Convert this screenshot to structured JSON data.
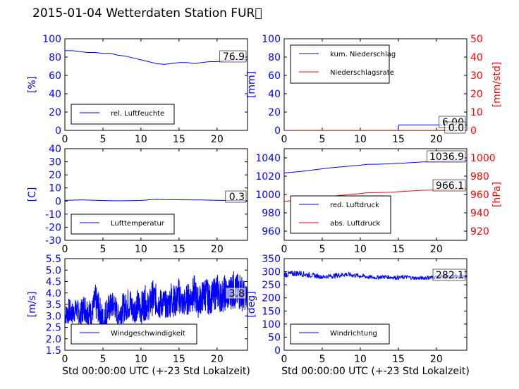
{
  "figure": {
    "title": "2015-01-04 Wetterdaten Station FUR\u0000",
    "xlabel": "Std 00:00:00 UTC (+-23 Std Lokalzeit)"
  },
  "colors": {
    "left_axis": "#0000ff",
    "right_axis": "#ff0000",
    "series_blue": "#0000ff",
    "series_red": "#ff0000"
  },
  "chart_data": [
    {
      "id": "humidity",
      "type": "line",
      "ylabel": "[%]",
      "xlim": [
        0,
        24
      ],
      "ylim": [
        0,
        100
      ],
      "xticks": [
        0,
        5,
        10,
        15,
        20
      ],
      "yticks": [
        0,
        20,
        40,
        60,
        80,
        100
      ],
      "legend_placement": "bottom-left",
      "series": [
        {
          "name": "rel. Luftfeuchte",
          "axis": "left",
          "color": "#0000ff",
          "x": [
            0,
            1,
            2,
            3,
            4,
            5,
            6,
            7,
            8,
            9,
            10,
            11,
            12,
            13,
            14,
            15,
            16,
            17,
            18,
            19,
            20,
            21,
            22,
            23,
            24
          ],
          "y": [
            87,
            87,
            86,
            85,
            85,
            84,
            84,
            82,
            81,
            79,
            77,
            75,
            73,
            72,
            73,
            74,
            74,
            73,
            74,
            75,
            75,
            76,
            77,
            77,
            77
          ]
        }
      ],
      "annotations": [
        {
          "text": "76.9"
        }
      ]
    },
    {
      "id": "precipitation",
      "type": "line",
      "ylabel": "[mm]",
      "ylabel_right": "[mm/std]",
      "xlim": [
        0,
        24
      ],
      "ylim": [
        0,
        100
      ],
      "ylim_right": [
        0,
        50
      ],
      "xticks": [
        0,
        5,
        10,
        15,
        20
      ],
      "yticks": [
        0,
        20,
        40,
        60,
        80,
        100
      ],
      "yticks_right": [
        0,
        10,
        20,
        30,
        40,
        50
      ],
      "legend_placement": "top-left",
      "series": [
        {
          "name": "kum. Niederschlag",
          "axis": "left",
          "color": "#0000ff",
          "x": [
            0,
            15,
            15.05,
            24
          ],
          "y": [
            0,
            0,
            6,
            6
          ]
        },
        {
          "name": "Niederschlagsrate",
          "axis": "right",
          "color": "#ff0000",
          "x": [
            0,
            24
          ],
          "y": [
            0,
            0
          ]
        }
      ],
      "annotations": [
        {
          "text": "6.00"
        },
        {
          "text": "0.0"
        }
      ]
    },
    {
      "id": "temperature",
      "type": "line",
      "ylabel": "[C]",
      "xlim": [
        0,
        24
      ],
      "ylim": [
        -30,
        40
      ],
      "xticks": [
        0,
        5,
        10,
        15,
        20
      ],
      "yticks": [
        -30,
        -20,
        -10,
        0,
        10,
        20,
        30,
        40
      ],
      "legend_placement": "bottom-left",
      "series": [
        {
          "name": "Lufttemperatur",
          "axis": "left",
          "color": "#0000ff",
          "x": [
            0,
            2,
            4,
            6,
            8,
            10,
            11,
            12,
            13,
            14,
            16,
            18,
            20,
            22,
            24
          ],
          "y": [
            0.5,
            0.9,
            0.6,
            0.2,
            0.2,
            0.4,
            0.9,
            1.4,
            1.1,
            1.0,
            0.9,
            0.8,
            0.6,
            0.4,
            0.3
          ]
        }
      ],
      "annotations": [
        {
          "text": "0.3"
        }
      ]
    },
    {
      "id": "pressure",
      "type": "line",
      "ylabel": "",
      "ylabel_right": "[hPa]",
      "xlim": [
        0,
        24
      ],
      "ylim": [
        950,
        1050
      ],
      "ylim_right": [
        910,
        1010
      ],
      "xticks": [
        0,
        5,
        10,
        15,
        20
      ],
      "yticks": [
        960,
        980,
        1000,
        1020,
        1040
      ],
      "yticks_right": [
        920,
        940,
        960,
        980,
        1000
      ],
      "legend_placement": "bottom-left",
      "series": [
        {
          "name": "red. Luftdruck",
          "axis": "left",
          "color": "#0000ff",
          "x": [
            0,
            2,
            4,
            6,
            8,
            10,
            11,
            12,
            14,
            16,
            18,
            20,
            22,
            24
          ],
          "y": [
            1023.5,
            1025,
            1027,
            1029,
            1030.5,
            1032,
            1033,
            1033,
            1033.5,
            1034.5,
            1035.5,
            1036,
            1036.5,
            1036.9
          ]
        },
        {
          "name": "abs. Luftdruck",
          "axis": "right",
          "color": "#ff0000",
          "x": [
            0,
            2,
            4,
            6,
            8,
            10,
            11,
            12,
            14,
            16,
            18,
            20,
            22,
            24
          ],
          "y": [
            952.5,
            954,
            956,
            958,
            959.5,
            961,
            962,
            962,
            962.5,
            963.5,
            964.5,
            965,
            965.5,
            966.1
          ]
        }
      ],
      "annotations": [
        {
          "text": "1036.9"
        },
        {
          "text": "966.1"
        }
      ]
    },
    {
      "id": "windspeed",
      "type": "line",
      "ylabel": "[m/s]",
      "xlim": [
        0,
        24
      ],
      "ylim": [
        1.5,
        5.5
      ],
      "xticks": [
        0,
        5,
        10,
        15,
        20
      ],
      "yticks": [
        1.5,
        2.0,
        2.5,
        3.0,
        3.5,
        4.0,
        4.5,
        5.0,
        5.5
      ],
      "legend_placement": "bottom-left",
      "series": [
        {
          "name": "Windgeschwindigkeit",
          "axis": "left",
          "color": "#0000ff",
          "x": [
            0,
            0.5,
            1,
            1.5,
            2,
            2.5,
            3,
            3.5,
            4,
            4.5,
            5,
            5.5,
            6,
            6.5,
            7,
            7.5,
            8,
            8.5,
            9,
            9.5,
            10,
            10.5,
            11,
            11.5,
            12,
            12.5,
            13,
            13.5,
            14,
            14.5,
            15,
            15.5,
            16,
            16.5,
            17,
            17.5,
            18,
            18.5,
            19,
            19.5,
            20,
            20.5,
            21,
            21.5,
            22,
            22.5,
            23,
            23.5,
            24
          ],
          "y": [
            3.0,
            3.2,
            3.1,
            3.3,
            3.0,
            3.4,
            3.2,
            3.1,
            3.6,
            3.3,
            2.6,
            3.2,
            3.4,
            3.5,
            3.0,
            3.3,
            3.4,
            3.6,
            3.2,
            3.5,
            3.3,
            3.6,
            3.4,
            3.8,
            3.7,
            3.5,
            3.6,
            3.4,
            3.8,
            3.6,
            3.9,
            3.5,
            3.7,
            3.8,
            4.0,
            3.6,
            3.8,
            4.0,
            3.7,
            3.9,
            4.1,
            3.8,
            4.0,
            3.9,
            4.2,
            4.0,
            4.1,
            3.9,
            3.8
          ],
          "spread": [
            0.4,
            0.6,
            0.5,
            0.5,
            0.6,
            0.6,
            0.7,
            0.5,
            0.8,
            0.7,
            0.9,
            0.7,
            0.6,
            0.6,
            0.5,
            0.7,
            0.6,
            0.8,
            0.6,
            0.7,
            0.7,
            0.8,
            0.6,
            0.8,
            0.7,
            0.7,
            0.6,
            0.6,
            0.8,
            0.7,
            0.8,
            0.6,
            0.7,
            0.7,
            0.8,
            0.7,
            0.7,
            0.8,
            0.7,
            0.7,
            0.8,
            0.7,
            0.8,
            0.7,
            0.9,
            0.8,
            0.9,
            0.7,
            0.5
          ]
        }
      ],
      "annotations": [
        {
          "text": "3.8"
        }
      ]
    },
    {
      "id": "winddir",
      "type": "line",
      "ylabel": "[deg]",
      "xlim": [
        0,
        24
      ],
      "ylim": [
        0,
        350
      ],
      "xticks": [
        0,
        5,
        10,
        15,
        20
      ],
      "yticks": [
        0,
        50,
        100,
        150,
        200,
        250,
        300,
        350
      ],
      "legend_placement": "bottom-left",
      "series": [
        {
          "name": "Windrichtung",
          "axis": "left",
          "color": "#0000ff",
          "x": [
            0,
            1,
            2,
            3,
            4,
            5,
            6,
            7,
            8,
            9,
            10,
            11,
            12,
            13,
            14,
            15,
            16,
            17,
            18,
            19,
            20,
            21,
            22,
            23,
            24
          ],
          "y": [
            290,
            292,
            295,
            288,
            285,
            280,
            283,
            286,
            290,
            287,
            284,
            280,
            278,
            281,
            279,
            277,
            280,
            276,
            275,
            278,
            279,
            280,
            281,
            282,
            282
          ],
          "spread": [
            12,
            12,
            12,
            10,
            9,
            8,
            9,
            10,
            10,
            9,
            9,
            8,
            8,
            8,
            8,
            8,
            8,
            7,
            7,
            8,
            8,
            8,
            8,
            8,
            6
          ]
        }
      ],
      "annotations": [
        {
          "text": "282.1"
        }
      ]
    }
  ]
}
